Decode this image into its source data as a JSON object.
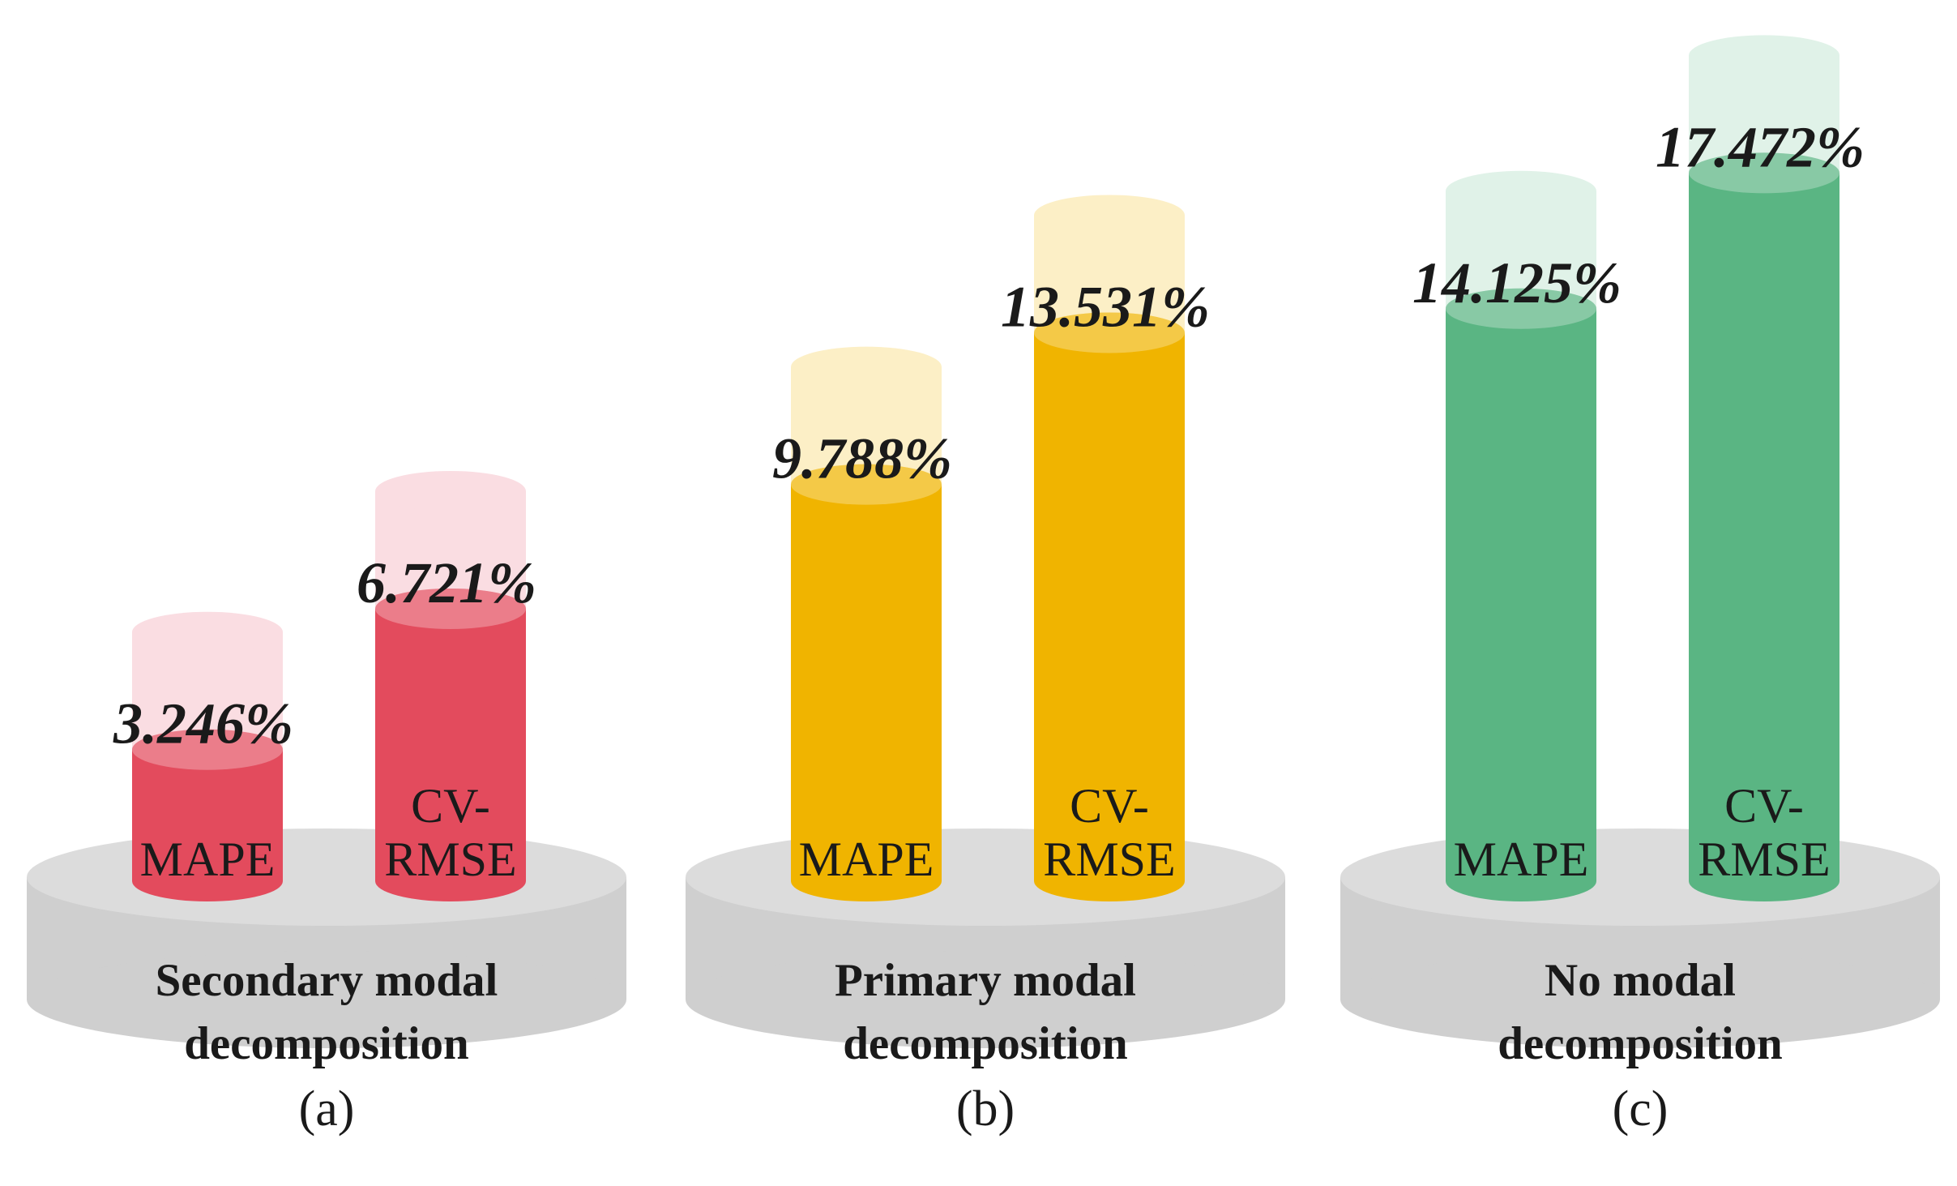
{
  "chart_data": [
    {
      "type": "bar",
      "panel_label": "(a)",
      "group_title": [
        "Secondary modal",
        "decomposition"
      ],
      "color": "#e34b5d",
      "light_color": "#fadde2",
      "categories": [
        "MAPE",
        "CV-RMSE"
      ],
      "category_lines": [
        [
          "MAPE"
        ],
        [
          "CV-",
          "RMSE"
        ]
      ],
      "values": [
        3.246,
        6.721
      ],
      "value_labels": [
        "3.246%",
        "6.721%"
      ],
      "unit": "%"
    },
    {
      "type": "bar",
      "panel_label": "(b)",
      "group_title": [
        "Primary modal",
        "decomposition"
      ],
      "color": "#f0b400",
      "light_color": "#fcefc6",
      "categories": [
        "MAPE",
        "CV-RMSE"
      ],
      "category_lines": [
        [
          "MAPE"
        ],
        [
          "CV-",
          "RMSE"
        ]
      ],
      "values": [
        9.788,
        13.531
      ],
      "value_labels": [
        "9.788%",
        "13.531%"
      ],
      "unit": "%"
    },
    {
      "type": "bar",
      "panel_label": "(c)",
      "group_title": [
        "No modal",
        "decomposition"
      ],
      "color": "#5ab583",
      "light_color": "#e0f2e8",
      "categories": [
        "MAPE",
        "CV-RMSE"
      ],
      "category_lines": [
        [
          "MAPE"
        ],
        [
          "CV-",
          "RMSE"
        ]
      ],
      "values": [
        14.125,
        17.472
      ],
      "value_labels": [
        "14.125%",
        "17.472%"
      ],
      "unit": "%"
    }
  ]
}
